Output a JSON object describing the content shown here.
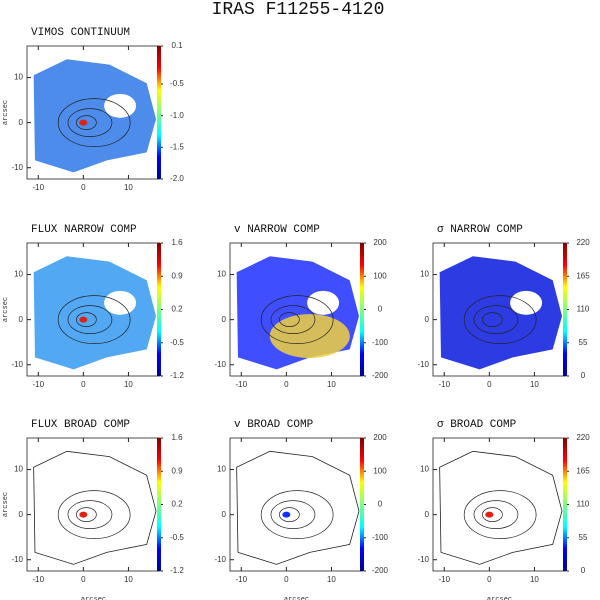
{
  "title": "IRAS F11255-4120",
  "chart_data": [
    {
      "type": "heatmap",
      "title": "VIMOS CONTINUUM",
      "ylabel": "arcsec",
      "xlim": [
        -12.5,
        17
      ],
      "ylim": [
        -12.5,
        17
      ],
      "xticks": [
        -10,
        0,
        10
      ],
      "yticks": [
        10,
        0,
        -10
      ],
      "colormap": "jet",
      "clim": [
        -2.0,
        0.1
      ],
      "cticks": [
        0.1,
        {
          "value": -0.5,
          "label": "-0.5"
        },
        {
          "value": -1,
          "label": "-1.0"
        },
        {
          "value": -1.5,
          "label": "-1.5"
        },
        {
          "value": -2,
          "label": "-2.0"
        }
      ]
    },
    {
      "type": "heatmap",
      "title": "FLUX NARROW COMP",
      "ylabel": "arcsec",
      "xlim": [
        -12.5,
        17
      ],
      "ylim": [
        -12.5,
        17
      ],
      "xticks": [
        -10,
        0,
        10
      ],
      "yticks": [
        10,
        0,
        -10
      ],
      "colormap": "jet",
      "clim": [
        -1.2,
        1.6
      ],
      "cticks": [
        1.6,
        0.9,
        0.2,
        -0.5,
        -1.2
      ]
    },
    {
      "type": "heatmap",
      "title": "v NARROW COMP",
      "xlim": [
        -12.5,
        17
      ],
      "ylim": [
        -12.5,
        17
      ],
      "xticks": [
        -10,
        0,
        10
      ],
      "yticks": [
        10,
        0,
        -10
      ],
      "colormap": "jet",
      "clim": [
        -200,
        200
      ],
      "cticks": [
        200,
        100,
        0,
        -100,
        -200
      ]
    },
    {
      "type": "heatmap",
      "title": "σ NARROW COMP",
      "xlim": [
        -12.5,
        17
      ],
      "ylim": [
        -12.5,
        17
      ],
      "xticks": [
        -10,
        0,
        10
      ],
      "yticks": [
        10,
        0,
        -10
      ],
      "colormap": "jet",
      "clim": [
        0,
        220
      ],
      "cticks": [
        220,
        165,
        110,
        55,
        0
      ]
    },
    {
      "type": "heatmap",
      "title": "FLUX BROAD COMP",
      "ylabel": "arcsec",
      "xlabel": "arcsec",
      "xlim": [
        -12.5,
        17
      ],
      "ylim": [
        -12.5,
        17
      ],
      "xticks": [
        -10,
        0,
        10
      ],
      "yticks": [
        10,
        0,
        -10
      ],
      "colormap": "jet",
      "clim": [
        -1.2,
        1.6
      ],
      "cticks": [
        1.6,
        0.9,
        0.2,
        -0.5,
        -1.2
      ]
    },
    {
      "type": "heatmap",
      "title": "v BROAD COMP",
      "xlabel": "arcsec",
      "xlim": [
        -12.5,
        17
      ],
      "ylim": [
        -12.5,
        17
      ],
      "xticks": [
        -10,
        0,
        10
      ],
      "yticks": [
        10,
        0,
        -10
      ],
      "colormap": "jet",
      "clim": [
        -200,
        200
      ],
      "cticks": [
        200,
        100,
        0,
        -100,
        -200
      ]
    },
    {
      "type": "heatmap",
      "title": "σ BROAD COMP",
      "xlabel": "arcsec",
      "xlim": [
        -12.5,
        17
      ],
      "ylim": [
        -12.5,
        17
      ],
      "xticks": [
        -10,
        0,
        10
      ],
      "yticks": [
        10,
        0,
        -10
      ],
      "colormap": "jet",
      "clim": [
        0,
        220
      ],
      "cticks": [
        220,
        165,
        110,
        55,
        0
      ]
    }
  ]
}
